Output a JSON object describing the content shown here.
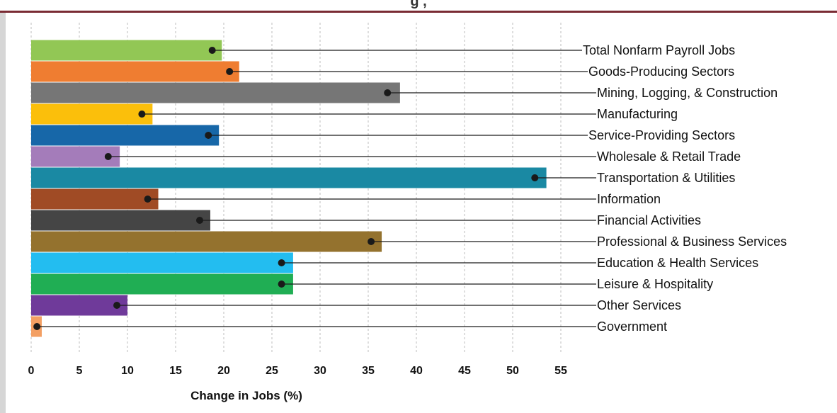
{
  "header": {
    "title_fragment": "g                                                                 ,"
  },
  "chart_data": {
    "type": "bar",
    "orientation": "horizontal",
    "xlabel": "Change in Jobs (%)",
    "ylabel": "",
    "xlim": [
      0,
      55
    ],
    "xticks": [
      "0",
      "5",
      "10",
      "15",
      "20",
      "25",
      "30",
      "35",
      "40",
      "45",
      "50",
      "55"
    ],
    "grid": "vertical dashed",
    "categories": [
      "Total Nonfarm Payroll Jobs",
      "Goods-Producing Sectors",
      "Mining, Logging, & Construction",
      "Manufacturing",
      "Service-Providing Sectors",
      "Wholesale & Retail Trade",
      "Transportation & Utilities",
      "Information",
      "Financial Activities",
      "Professional & Business Services",
      "Education & Health Services",
      "Leisure & Hospitality",
      "Other Services",
      "Government"
    ],
    "series": [
      {
        "values": [
          19.8,
          21.6,
          38.3,
          12.6,
          19.5,
          9.2,
          53.5,
          13.2,
          18.6,
          36.4,
          27.2,
          27.2,
          10.0,
          1.1
        ]
      },
      {
        "values": [
          18.8,
          20.6,
          37.0,
          11.5,
          18.4,
          8.0,
          52.3,
          12.1,
          17.5,
          35.3,
          26.0,
          26.0,
          8.9,
          0.6
        ]
      }
    ],
    "colors": [
      "#92c755",
      "#ef7d31",
      "#767676",
      "#fbbf0b",
      "#1767a8",
      "#a47cba",
      "#1a89a3",
      "#a04b25",
      "#454545",
      "#94722e",
      "#23bdf0",
      "#20ae54",
      "#6f3a9a",
      "#f39f63"
    ],
    "marker_color": "#1a1a1a",
    "leader_color": "#1a1a1a"
  }
}
